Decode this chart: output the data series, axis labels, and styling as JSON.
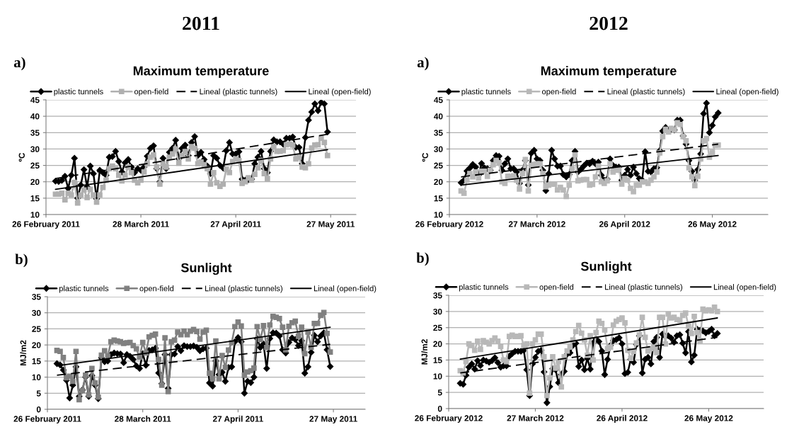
{
  "chart_data": [
    {
      "type": "line",
      "title": "Maximum temperature",
      "subtitle": "2011",
      "annotations": [
        "a)"
      ],
      "ylabel": "ºC",
      "grid": "y",
      "legend": "top",
      "x": [
        "2011-03-01",
        "2011-03-02",
        "2011-03-03",
        "2011-03-04",
        "2011-03-05",
        "2011-03-06",
        "2011-03-07",
        "2011-03-08",
        "2011-03-09",
        "2011-03-10",
        "2011-03-11",
        "2011-03-12",
        "2011-03-13",
        "2011-03-14",
        "2011-03-15",
        "2011-03-16",
        "2011-03-17",
        "2011-03-18",
        "2011-03-19",
        "2011-03-20",
        "2011-03-21",
        "2011-03-22",
        "2011-03-23",
        "2011-03-24",
        "2011-03-25",
        "2011-03-26",
        "2011-03-27",
        "2011-03-28",
        "2011-03-29",
        "2011-03-30",
        "2011-03-31",
        "2011-04-01",
        "2011-04-02",
        "2011-04-03",
        "2011-04-04",
        "2011-04-05",
        "2011-04-06",
        "2011-04-07",
        "2011-04-08",
        "2011-04-09",
        "2011-04-10",
        "2011-04-11",
        "2011-04-12",
        "2011-04-13",
        "2011-04-14",
        "2011-04-15",
        "2011-04-16",
        "2011-04-17",
        "2011-04-18",
        "2011-04-19",
        "2011-04-20",
        "2011-04-21",
        "2011-04-22",
        "2011-04-23",
        "2011-04-24",
        "2011-04-25",
        "2011-04-26",
        "2011-04-27",
        "2011-04-28",
        "2011-04-29",
        "2011-04-30",
        "2011-05-01",
        "2011-05-02",
        "2011-05-03",
        "2011-05-04",
        "2011-05-05",
        "2011-05-06",
        "2011-05-07",
        "2011-05-08",
        "2011-05-09",
        "2011-05-10",
        "2011-05-11",
        "2011-05-12",
        "2011-05-13",
        "2011-05-14",
        "2011-05-15",
        "2011-05-16",
        "2011-05-17",
        "2011-05-18",
        "2011-05-19",
        "2011-05-20",
        "2011-05-21",
        "2011-05-22",
        "2011-05-23",
        "2011-05-24",
        "2011-05-25",
        "2011-05-26"
      ],
      "xlim": [
        "2011-02-26",
        "2011-06-04"
      ],
      "xticks": [
        {
          "value": "2011-02-26",
          "label": "26 February 2011"
        },
        {
          "value": "2011-03-28",
          "label": "28 March 2011"
        },
        {
          "value": "2011-04-27",
          "label": "27 April 2011"
        },
        {
          "value": "2011-05-27",
          "label": "27 May 2011"
        }
      ],
      "ylim": [
        10,
        45
      ],
      "yticks": [
        10,
        15,
        20,
        25,
        30,
        35,
        40,
        45
      ],
      "series": [
        {
          "name": "plastic tunnels",
          "color": "#000000",
          "marker": "diamond",
          "line_style": "solid",
          "values": [
            20.2,
            20.1,
            20.4,
            21.7,
            18,
            22,
            27.2,
            15,
            19,
            23.7,
            18.5,
            24.8,
            22.5,
            14.8,
            23.5,
            22.8,
            22,
            27.5,
            27.7,
            29.3,
            26.2,
            23,
            25.8,
            26.8,
            24.5,
            22.8,
            24,
            23.5,
            24.5,
            27.8,
            30.2,
            31,
            24,
            20,
            27.2,
            24,
            29,
            30.2,
            32.7,
            27,
            30.2,
            31.2,
            28,
            32,
            33.8,
            28,
            29,
            26.8,
            24.8,
            22.5,
            28,
            27.2,
            25,
            24.2,
            29.5,
            32,
            28.5,
            28.5,
            29.2,
            20.8,
            20.5,
            20.6,
            20.8,
            25.5,
            27.5,
            29.3,
            24,
            22.8,
            29.3,
            32.8,
            32.2,
            32.2,
            31.5,
            33.3,
            33.3,
            33.7,
            30.5,
            30.5,
            25.5,
            33.5,
            38.8,
            41.3,
            43.8,
            41.7,
            44.2,
            43.8,
            35.2
          ]
        },
        {
          "name": "open-field",
          "color": "#b0b0b0",
          "marker": "square",
          "line_style": "solid",
          "values": [
            16.2,
            16.2,
            16.5,
            14.5,
            16.5,
            16,
            19.8,
            13.5,
            16,
            17.5,
            15.2,
            17.7,
            16,
            13.8,
            16,
            18.3,
            20.5,
            24,
            24.8,
            24,
            22,
            20.3,
            22,
            24.5,
            22.8,
            20.5,
            19.7,
            20.5,
            23,
            25.5,
            27.5,
            28.2,
            24.5,
            19.3,
            25.5,
            24.5,
            27.5,
            28.5,
            30,
            25.7,
            28,
            29.2,
            27,
            30.7,
            30.2,
            25.5,
            26,
            25.2,
            24,
            19.3,
            22.8,
            19.7,
            18.6,
            19.3,
            23.8,
            22.8,
            26.2,
            27,
            26.5,
            19.5,
            20,
            21.2,
            20.5,
            22.3,
            24.3,
            26.5,
            22.5,
            21,
            27,
            30.8,
            29.3,
            29.3,
            29.5,
            31.3,
            31.5,
            31.2,
            27,
            27.5,
            24.5,
            24.3,
            25.5,
            30.3,
            31.2,
            31.3,
            33.3,
            32,
            28
          ]
        },
        {
          "name": "Lineal (plastic tunnels)",
          "type": "line",
          "color": "#000000",
          "marker": "none",
          "line_style": "dashed",
          "x": [
            "2011-03-01",
            "2011-05-26"
          ],
          "values": [
            21,
            34.5
          ]
        },
        {
          "name": "Lineal (open-field)",
          "type": "line",
          "color": "#000000",
          "marker": "none",
          "line_style": "solid",
          "x": [
            "2011-03-01",
            "2011-05-26"
          ],
          "values": [
            17.7,
            29.8
          ]
        }
      ]
    },
    {
      "type": "line",
      "title": "Maximum temperature",
      "subtitle": "2012",
      "annotations": [
        "a)"
      ],
      "ylabel": "ºC",
      "grid": "y",
      "legend": "top",
      "x": [
        "2012-03-01",
        "2012-03-02",
        "2012-03-03",
        "2012-03-04",
        "2012-03-05",
        "2012-03-06",
        "2012-03-07",
        "2012-03-08",
        "2012-03-09",
        "2012-03-10",
        "2012-03-11",
        "2012-03-12",
        "2012-03-13",
        "2012-03-14",
        "2012-03-15",
        "2012-03-16",
        "2012-03-17",
        "2012-03-18",
        "2012-03-19",
        "2012-03-20",
        "2012-03-21",
        "2012-03-22",
        "2012-03-23",
        "2012-03-24",
        "2012-03-25",
        "2012-03-26",
        "2012-03-27",
        "2012-03-28",
        "2012-03-29",
        "2012-03-30",
        "2012-03-31",
        "2012-04-01",
        "2012-04-02",
        "2012-04-03",
        "2012-04-04",
        "2012-04-05",
        "2012-04-06",
        "2012-04-07",
        "2012-04-08",
        "2012-04-09",
        "2012-04-10",
        "2012-04-11",
        "2012-04-12",
        "2012-04-13",
        "2012-04-14",
        "2012-04-15",
        "2012-04-16",
        "2012-04-17",
        "2012-04-18",
        "2012-04-19",
        "2012-04-20",
        "2012-04-21",
        "2012-04-22",
        "2012-04-23",
        "2012-04-24",
        "2012-04-25",
        "2012-04-26",
        "2012-04-27",
        "2012-04-28",
        "2012-04-29",
        "2012-04-30",
        "2012-05-01",
        "2012-05-02",
        "2012-05-03",
        "2012-05-04",
        "2012-05-05",
        "2012-05-06",
        "2012-05-07",
        "2012-05-08",
        "2012-05-09",
        "2012-05-10",
        "2012-05-11",
        "2012-05-12",
        "2012-05-13",
        "2012-05-14",
        "2012-05-15",
        "2012-05-16",
        "2012-05-17",
        "2012-05-18",
        "2012-05-19",
        "2012-05-20",
        "2012-05-21",
        "2012-05-22",
        "2012-05-23",
        "2012-05-24",
        "2012-05-25",
        "2012-05-26",
        "2012-05-27",
        "2012-05-28"
      ],
      "xlim": [
        "2012-02-26",
        "2012-06-14"
      ],
      "xticks": [
        {
          "value": "2012-02-26",
          "label": "26 February 2012"
        },
        {
          "value": "2012-03-27",
          "label": "27 March 2012"
        },
        {
          "value": "2012-04-26",
          "label": "26 April 2012"
        },
        {
          "value": "2012-05-26",
          "label": "26 May 2012"
        }
      ],
      "ylim": [
        10,
        45
      ],
      "yticks": [
        10,
        15,
        20,
        25,
        30,
        35,
        40,
        45
      ],
      "series": [
        {
          "name": "plastic tunnels",
          "color": "#000000",
          "marker": "diamond",
          "line_style": "solid",
          "values": [
            19.7,
            20.5,
            23.3,
            24.2,
            25.3,
            24.5,
            22,
            25.6,
            24.2,
            24,
            23.5,
            26.5,
            28,
            27.8,
            23.5,
            25.5,
            27,
            24,
            24,
            23,
            19.5,
            23.5,
            26.5,
            19,
            28.7,
            29.6,
            27,
            26.5,
            23.5,
            17.3,
            22.5,
            29.6,
            27,
            24.8,
            24.8,
            22.2,
            21.5,
            22.2,
            26.5,
            29.3,
            23,
            23.8,
            24.8,
            25.7,
            25.5,
            26.3,
            25.5,
            26,
            22,
            20.5,
            20.8,
            27,
            25,
            24.5,
            24.5,
            20.5,
            22,
            23.8,
            22,
            24.5,
            22.5,
            21,
            20.5,
            29.2,
            23.2,
            23,
            24,
            24.3,
            29.5,
            35.5,
            36.6,
            35.5,
            36,
            35.8,
            38.8,
            38.8,
            34,
            31.5,
            26.5,
            23.2,
            20.5,
            23.7,
            28.5,
            40.8,
            44,
            35,
            37.2,
            39.8,
            41
          ]
        },
        {
          "name": "open-field",
          "color": "#b8b8b8",
          "marker": "square",
          "line_style": "solid",
          "values": [
            17.2,
            16.5,
            20.5,
            22.5,
            21.5,
            23,
            21.2,
            23.2,
            23.2,
            21.7,
            23.5,
            25.2,
            26.5,
            25.8,
            20,
            19.5,
            21.7,
            21.5,
            21.8,
            20.5,
            17.8,
            22.5,
            26.8,
            17.2,
            25,
            25.3,
            25.5,
            25.5,
            22.5,
            18.5,
            19,
            19.3,
            19.3,
            17.5,
            18.3,
            17.5,
            15.5,
            19,
            24,
            28.2,
            20.3,
            20.5,
            20.7,
            20.7,
            19,
            19.2,
            21.5,
            24.8,
            20,
            19.5,
            20.3,
            25.5,
            23,
            23.5,
            23.8,
            19.3,
            21,
            20.5,
            18,
            17,
            19,
            19,
            20,
            20,
            19.5,
            20.5,
            21.5,
            23,
            28.8,
            33.8,
            36,
            35.2,
            36.3,
            35.8,
            38,
            37.5,
            33.8,
            32.5,
            24.3,
            21.5,
            18.8,
            21.7,
            27,
            32.5,
            33.2,
            27.5,
            29,
            31.2,
            31.2
          ]
        },
        {
          "name": "Lineal (plastic tunnels)",
          "type": "line",
          "color": "#000000",
          "marker": "none",
          "line_style": "dashed",
          "x": [
            "2012-03-01",
            "2012-05-28"
          ],
          "values": [
            21.5,
            31.5
          ]
        },
        {
          "name": "Lineal (open-field)",
          "type": "line",
          "color": "#000000",
          "marker": "none",
          "line_style": "solid",
          "x": [
            "2012-03-01",
            "2012-05-28"
          ],
          "values": [
            19,
            28
          ]
        }
      ]
    },
    {
      "type": "line",
      "title": "Sunlight",
      "annotations": [
        "b)"
      ],
      "ylabel": "MJ/m2",
      "grid": "y",
      "legend": "top",
      "x": [
        "2011-03-01",
        "2011-03-02",
        "2011-03-03",
        "2011-03-04",
        "2011-03-05",
        "2011-03-06",
        "2011-03-07",
        "2011-03-08",
        "2011-03-09",
        "2011-03-10",
        "2011-03-11",
        "2011-03-12",
        "2011-03-13",
        "2011-03-14",
        "2011-03-15",
        "2011-03-16",
        "2011-03-17",
        "2011-03-18",
        "2011-03-19",
        "2011-03-20",
        "2011-03-21",
        "2011-03-22",
        "2011-03-23",
        "2011-03-24",
        "2011-03-25",
        "2011-03-26",
        "2011-03-27",
        "2011-03-28",
        "2011-03-29",
        "2011-03-30",
        "2011-03-31",
        "2011-04-01",
        "2011-04-02",
        "2011-04-03",
        "2011-04-04",
        "2011-04-05",
        "2011-04-06",
        "2011-04-07",
        "2011-04-08",
        "2011-04-09",
        "2011-04-10",
        "2011-04-11",
        "2011-04-12",
        "2011-04-13",
        "2011-04-14",
        "2011-04-15",
        "2011-04-16",
        "2011-04-17",
        "2011-04-18",
        "2011-04-19",
        "2011-04-20",
        "2011-04-21",
        "2011-04-22",
        "2011-04-23",
        "2011-04-24",
        "2011-04-25",
        "2011-04-26",
        "2011-04-27",
        "2011-04-28",
        "2011-04-29",
        "2011-04-30",
        "2011-05-01",
        "2011-05-02",
        "2011-05-03",
        "2011-05-04",
        "2011-05-05",
        "2011-05-06",
        "2011-05-07",
        "2011-05-08",
        "2011-05-09",
        "2011-05-10",
        "2011-05-11",
        "2011-05-12",
        "2011-05-13",
        "2011-05-14",
        "2011-05-15",
        "2011-05-16",
        "2011-05-17",
        "2011-05-18",
        "2011-05-19",
        "2011-05-20",
        "2011-05-21",
        "2011-05-22",
        "2011-05-23",
        "2011-05-24",
        "2011-05-25",
        "2011-05-26"
      ],
      "xlim": [
        "2011-02-26",
        "2011-06-06"
      ],
      "xticks": [
        {
          "value": "2011-02-26",
          "label": "26 February 2011"
        },
        {
          "value": "2011-03-28",
          "label": "28 March 2011"
        },
        {
          "value": "2011-04-27",
          "label": "27 April 2011"
        },
        {
          "value": "2011-05-27",
          "label": "27 May 2011"
        }
      ],
      "ylim": [
        0,
        35
      ],
      "yticks": [
        0,
        5,
        10,
        15,
        20,
        25,
        30,
        35
      ],
      "series": [
        {
          "name": "plastic tunnels",
          "color": "#000000",
          "marker": "diamond",
          "line_style": "solid",
          "values": [
            14.2,
            13.8,
            12.2,
            9,
            3.5,
            7.5,
            13.2,
            4,
            6,
            10,
            4,
            10.5,
            7.5,
            3.3,
            16,
            14.8,
            15,
            17,
            17.5,
            17.3,
            17.2,
            14.5,
            17,
            16.5,
            15.5,
            13.5,
            12.7,
            17.3,
            13.7,
            18.3,
            18.5,
            19,
            11.3,
            8,
            17,
            6.5,
            17,
            17.2,
            19.5,
            18.2,
            19.8,
            19.5,
            19.5,
            19.7,
            19.3,
            18.2,
            18.8,
            19,
            8.2,
            7.2,
            15,
            10.8,
            11.5,
            8.7,
            13,
            13.2,
            21,
            22.3,
            21,
            5,
            8.7,
            8.3,
            10,
            22,
            19.2,
            20.3,
            12.7,
            22,
            23.8,
            23.7,
            22.8,
            18.5,
            17.5,
            20.8,
            22.2,
            21.7,
            19.8,
            21.3,
            11.2,
            13.2,
            17.7,
            23,
            21,
            22.8,
            23.8,
            18.5,
            13.3
          ]
        },
        {
          "name": "open-field",
          "color": "#808080",
          "marker": "square",
          "line_style": "solid",
          "values": [
            18.3,
            18,
            16.1,
            9.8,
            10.3,
            8.7,
            18,
            3,
            5.8,
            10.6,
            4.5,
            12.7,
            8.2,
            3.8,
            16.8,
            18.2,
            16.5,
            21,
            21.5,
            21.2,
            21,
            20.5,
            20.7,
            20.8,
            19.8,
            18.8,
            16.2,
            20.8,
            17.5,
            22.5,
            23,
            23.4,
            15.5,
            7.5,
            22.2,
            5.5,
            21,
            21.5,
            24,
            23.2,
            24.3,
            23.2,
            24.3,
            24.8,
            24.2,
            21.8,
            24,
            24.6,
            11.2,
            9.5,
            21.2,
            9.5,
            16.7,
            13,
            18.4,
            20.7,
            25.7,
            27.1,
            25.9,
            10.6,
            11.6,
            12,
            12.8,
            25.7,
            21.7,
            26,
            19.2,
            26.2,
            28.9,
            28.6,
            28.2,
            25.5,
            18.5,
            25.8,
            26.9,
            27.4,
            22.7,
            25.5,
            17.3,
            24,
            19.3,
            26.7,
            26.7,
            29.2,
            30.1,
            23.6,
            17.8
          ]
        },
        {
          "name": "Lineal (plastic tunnels)",
          "type": "line",
          "color": "#000000",
          "marker": "none",
          "line_style": "dashed",
          "x": [
            "2011-03-01",
            "2011-05-26"
          ],
          "values": [
            10.6,
            20.2
          ]
        },
        {
          "name": "Lineal (open-field)",
          "type": "line",
          "color": "#000000",
          "marker": "none",
          "line_style": "solid",
          "x": [
            "2011-03-01",
            "2011-05-26"
          ],
          "values": [
            13.5,
            25.5
          ]
        }
      ]
    },
    {
      "type": "line",
      "title": "Sunlight",
      "annotations": [
        "b)"
      ],
      "ylabel": "MJ/m2",
      "grid": "y",
      "legend": "top",
      "x": [
        "2012-03-01",
        "2012-03-02",
        "2012-03-03",
        "2012-03-04",
        "2012-03-05",
        "2012-03-06",
        "2012-03-07",
        "2012-03-08",
        "2012-03-09",
        "2012-03-10",
        "2012-03-11",
        "2012-03-12",
        "2012-03-13",
        "2012-03-14",
        "2012-03-15",
        "2012-03-16",
        "2012-03-17",
        "2012-03-18",
        "2012-03-19",
        "2012-03-20",
        "2012-03-21",
        "2012-03-22",
        "2012-03-23",
        "2012-03-24",
        "2012-03-25",
        "2012-03-26",
        "2012-03-27",
        "2012-03-28",
        "2012-03-29",
        "2012-03-30",
        "2012-03-31",
        "2012-04-01",
        "2012-04-02",
        "2012-04-03",
        "2012-04-04",
        "2012-04-05",
        "2012-04-06",
        "2012-04-07",
        "2012-04-08",
        "2012-04-09",
        "2012-04-10",
        "2012-04-11",
        "2012-04-12",
        "2012-04-13",
        "2012-04-14",
        "2012-04-15",
        "2012-04-16",
        "2012-04-17",
        "2012-04-18",
        "2012-04-19",
        "2012-04-20",
        "2012-04-21",
        "2012-04-22",
        "2012-04-23",
        "2012-04-24",
        "2012-04-25",
        "2012-04-26",
        "2012-04-27",
        "2012-04-28",
        "2012-04-29",
        "2012-04-30",
        "2012-05-01",
        "2012-05-02",
        "2012-05-03",
        "2012-05-04",
        "2012-05-05",
        "2012-05-06",
        "2012-05-07",
        "2012-05-08",
        "2012-05-09",
        "2012-05-10",
        "2012-05-11",
        "2012-05-12",
        "2012-05-13",
        "2012-05-14",
        "2012-05-15",
        "2012-05-16",
        "2012-05-17",
        "2012-05-18",
        "2012-05-19",
        "2012-05-20",
        "2012-05-21",
        "2012-05-22",
        "2012-05-23",
        "2012-05-24",
        "2012-05-25",
        "2012-05-26",
        "2012-05-27",
        "2012-05-28",
        "2012-05-29"
      ],
      "xlim": [
        "2012-02-26",
        "2012-06-14"
      ],
      "xticks": [
        {
          "value": "2012-02-26",
          "label": "26 February 2012"
        },
        {
          "value": "2012-03-27",
          "label": "27 March 2012"
        },
        {
          "value": "2012-04-26",
          "label": "26 April 2012"
        },
        {
          "value": "2012-05-26",
          "label": "26 May 2012"
        }
      ],
      "ylim": [
        0,
        35
      ],
      "yticks": [
        0,
        5,
        10,
        15,
        20,
        25,
        30,
        35
      ],
      "series": [
        {
          "name": "plastic tunnels",
          "color": "#000000",
          "marker": "diamond",
          "line_style": "solid",
          "values": [
            7.8,
            7.5,
            10.3,
            12.8,
            13.8,
            12.2,
            14.8,
            13.3,
            15,
            14.7,
            14.3,
            14.8,
            15.7,
            14.2,
            12.8,
            13.2,
            13.2,
            16.2,
            17,
            17.7,
            17.7,
            17.7,
            18,
            12,
            4,
            13.8,
            15.8,
            17.7,
            18,
            11.3,
            1.8,
            6.8,
            12.3,
            12,
            8,
            10.5,
            11.5,
            16.8,
            17.2,
            19.5,
            20.2,
            13,
            15,
            12,
            15.5,
            12.2,
            20.3,
            21.5,
            20.7,
            17.8,
            10.5,
            15.2,
            19.5,
            21,
            21.3,
            21.9,
            20,
            10.8,
            11.2,
            15.2,
            14.3,
            19.8,
            22.5,
            11,
            15.2,
            15.8,
            13.8,
            20.7,
            22,
            15.8,
            23,
            22.3,
            22.5,
            21.8,
            20.5,
            22.5,
            22.8,
            20.2,
            17.2,
            23.8,
            14.4,
            16.5,
            24.5,
            24.2,
            24,
            23.4,
            23.8,
            24.5,
            22.5,
            23.2
          ]
        },
        {
          "name": "open-field",
          "color": "#b8b8b8",
          "marker": "square",
          "line_style": "solid",
          "values": [
            11.7,
            11,
            14.5,
            20,
            19.5,
            18,
            20.8,
            18.3,
            21,
            20.5,
            20,
            21,
            21.8,
            20.8,
            19.2,
            15,
            14.5,
            22.3,
            22.7,
            22.3,
            22.3,
            22.5,
            19.5,
            20,
            4.8,
            20,
            21.2,
            23,
            23,
            16,
            4,
            9.5,
            16,
            12.5,
            14.5,
            6.7,
            16,
            17.8,
            19,
            21.2,
            23.8,
            25.7,
            23.3,
            21.2,
            16.5,
            22.5,
            15,
            23.5,
            27,
            26.3,
            24.3,
            18.5,
            19,
            25.8,
            27,
            27.5,
            28,
            26.5,
            18,
            15.5,
            17.7,
            20.3,
            22.8,
            28.2,
            22,
            17.8,
            18.5,
            19,
            17.3,
            28.2,
            28.2,
            20,
            29.2,
            28,
            28.2,
            27.5,
            27.3,
            28.8,
            29.5,
            25.5,
            23.2,
            28.5,
            23.5,
            21,
            30.7,
            30.2,
            30.5,
            30.2,
            31.3,
            30
          ]
        },
        {
          "name": "Lineal (plastic tunnels)",
          "type": "line",
          "color": "#000000",
          "marker": "none",
          "line_style": "dashed",
          "x": [
            "2012-03-01",
            "2012-05-29"
          ],
          "values": [
            11,
            22
          ]
        },
        {
          "name": "Lineal (open-field)",
          "type": "line",
          "color": "#000000",
          "marker": "none",
          "line_style": "solid",
          "x": [
            "2012-03-01",
            "2012-05-29"
          ],
          "values": [
            15.3,
            28
          ]
        }
      ]
    }
  ]
}
